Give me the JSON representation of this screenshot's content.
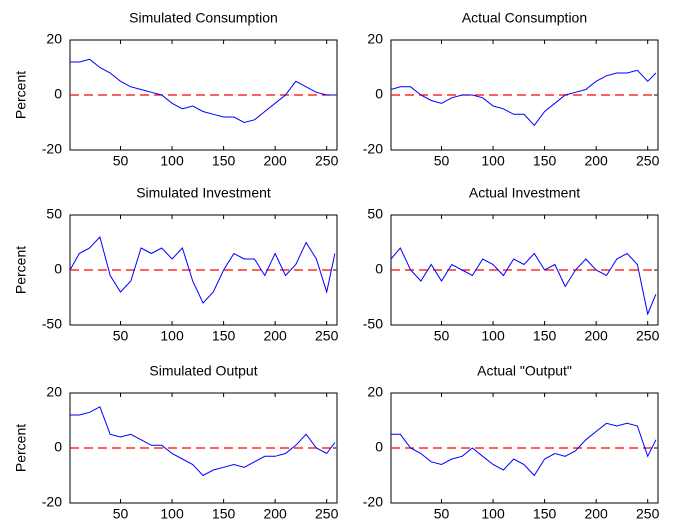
{
  "chart_data": [
    {
      "type": "line",
      "title": "Simulated Consumption",
      "ylabel": "Percent",
      "color": "#0000ff",
      "x": [
        1,
        10,
        20,
        30,
        40,
        50,
        60,
        70,
        80,
        90,
        100,
        110,
        120,
        130,
        140,
        150,
        160,
        170,
        180,
        190,
        200,
        210,
        220,
        230,
        240,
        250,
        258
      ],
      "values": [
        12,
        12,
        13,
        10,
        8,
        5,
        3,
        2,
        1,
        0,
        -3,
        -5,
        -4,
        -6,
        -7,
        -8,
        -8,
        -10,
        -9,
        -6,
        -3,
        0,
        5,
        3,
        1,
        0,
        0
      ],
      "xlim": [
        1,
        260
      ],
      "ylim": [
        -20,
        20
      ],
      "xticks": [
        50,
        100,
        150,
        200,
        250
      ],
      "yticks": [
        -20,
        0,
        20
      ],
      "hline": 0,
      "hline_color": "#ff0000"
    },
    {
      "type": "line",
      "title": "Actual Consumption",
      "color": "#0000ff",
      "x": [
        1,
        10,
        20,
        30,
        40,
        50,
        60,
        70,
        80,
        90,
        100,
        110,
        120,
        130,
        140,
        150,
        160,
        170,
        180,
        190,
        200,
        210,
        220,
        230,
        240,
        250,
        258
      ],
      "values": [
        2,
        3,
        3,
        0,
        -2,
        -3,
        -1,
        0,
        0,
        -1,
        -4,
        -5,
        -7,
        -7,
        -11,
        -6,
        -3,
        0,
        1,
        2,
        5,
        7,
        8,
        8,
        9,
        5,
        8
      ],
      "xlim": [
        1,
        260
      ],
      "ylim": [
        -20,
        20
      ],
      "xticks": [
        50,
        100,
        150,
        200,
        250
      ],
      "yticks": [
        -20,
        0,
        20
      ],
      "hline": 0,
      "hline_color": "#ff0000"
    },
    {
      "type": "line",
      "title": "Simulated Investment",
      "ylabel": "Percent",
      "color": "#0000ff",
      "x": [
        1,
        10,
        20,
        30,
        40,
        50,
        60,
        70,
        80,
        90,
        100,
        110,
        120,
        130,
        140,
        150,
        160,
        170,
        180,
        190,
        200,
        210,
        220,
        230,
        240,
        250,
        258
      ],
      "values": [
        0,
        15,
        20,
        30,
        -5,
        -20,
        -10,
        20,
        15,
        20,
        10,
        20,
        -10,
        -30,
        -20,
        0,
        15,
        10,
        10,
        -5,
        15,
        -5,
        5,
        25,
        10,
        -20,
        15
      ],
      "xlim": [
        1,
        260
      ],
      "ylim": [
        -50,
        50
      ],
      "xticks": [
        50,
        100,
        150,
        200,
        250
      ],
      "yticks": [
        -50,
        0,
        50
      ],
      "hline": 0,
      "hline_color": "#ff0000"
    },
    {
      "type": "line",
      "title": "Actual Investment",
      "color": "#0000ff",
      "x": [
        1,
        10,
        20,
        30,
        40,
        50,
        60,
        70,
        80,
        90,
        100,
        110,
        120,
        130,
        140,
        150,
        160,
        170,
        180,
        190,
        200,
        210,
        220,
        230,
        240,
        250,
        258
      ],
      "values": [
        10,
        20,
        0,
        -10,
        5,
        -10,
        5,
        0,
        -5,
        10,
        5,
        -5,
        10,
        5,
        15,
        0,
        5,
        -15,
        0,
        10,
        0,
        -5,
        10,
        15,
        5,
        -40,
        -22
      ],
      "xlim": [
        1,
        260
      ],
      "ylim": [
        -50,
        50
      ],
      "xticks": [
        50,
        100,
        150,
        200,
        250
      ],
      "yticks": [
        -50,
        0,
        50
      ],
      "hline": 0,
      "hline_color": "#ff0000"
    },
    {
      "type": "line",
      "title": "Simulated Output",
      "ylabel": "Percent",
      "color": "#0000ff",
      "x": [
        1,
        10,
        20,
        30,
        40,
        50,
        60,
        70,
        80,
        90,
        100,
        110,
        120,
        130,
        140,
        150,
        160,
        170,
        180,
        190,
        200,
        210,
        220,
        230,
        240,
        250,
        258
      ],
      "values": [
        12,
        12,
        13,
        15,
        5,
        4,
        5,
        3,
        1,
        1,
        -2,
        -4,
        -6,
        -10,
        -8,
        -7,
        -6,
        -7,
        -5,
        -3,
        -3,
        -2,
        1,
        5,
        0,
        -2,
        2
      ],
      "xlim": [
        1,
        260
      ],
      "ylim": [
        -20,
        20
      ],
      "xticks": [
        50,
        100,
        150,
        200,
        250
      ],
      "yticks": [
        -20,
        0,
        20
      ],
      "hline": 0,
      "hline_color": "#ff0000"
    },
    {
      "type": "line",
      "title": "Actual \"Output\"",
      "color": "#0000ff",
      "x": [
        1,
        10,
        20,
        30,
        40,
        50,
        60,
        70,
        80,
        90,
        100,
        110,
        120,
        130,
        140,
        150,
        160,
        170,
        180,
        190,
        200,
        210,
        220,
        230,
        240,
        250,
        258
      ],
      "values": [
        5,
        5,
        0,
        -2,
        -5,
        -6,
        -4,
        -3,
        0,
        -3,
        -6,
        -8,
        -4,
        -6,
        -10,
        -4,
        -2,
        -3,
        -1,
        3,
        6,
        9,
        8,
        9,
        8,
        -3,
        3
      ],
      "xlim": [
        1,
        260
      ],
      "ylim": [
        -20,
        20
      ],
      "xticks": [
        50,
        100,
        150,
        200,
        250
      ],
      "yticks": [
        -20,
        0,
        20
      ],
      "hline": 0,
      "hline_color": "#ff0000"
    }
  ]
}
